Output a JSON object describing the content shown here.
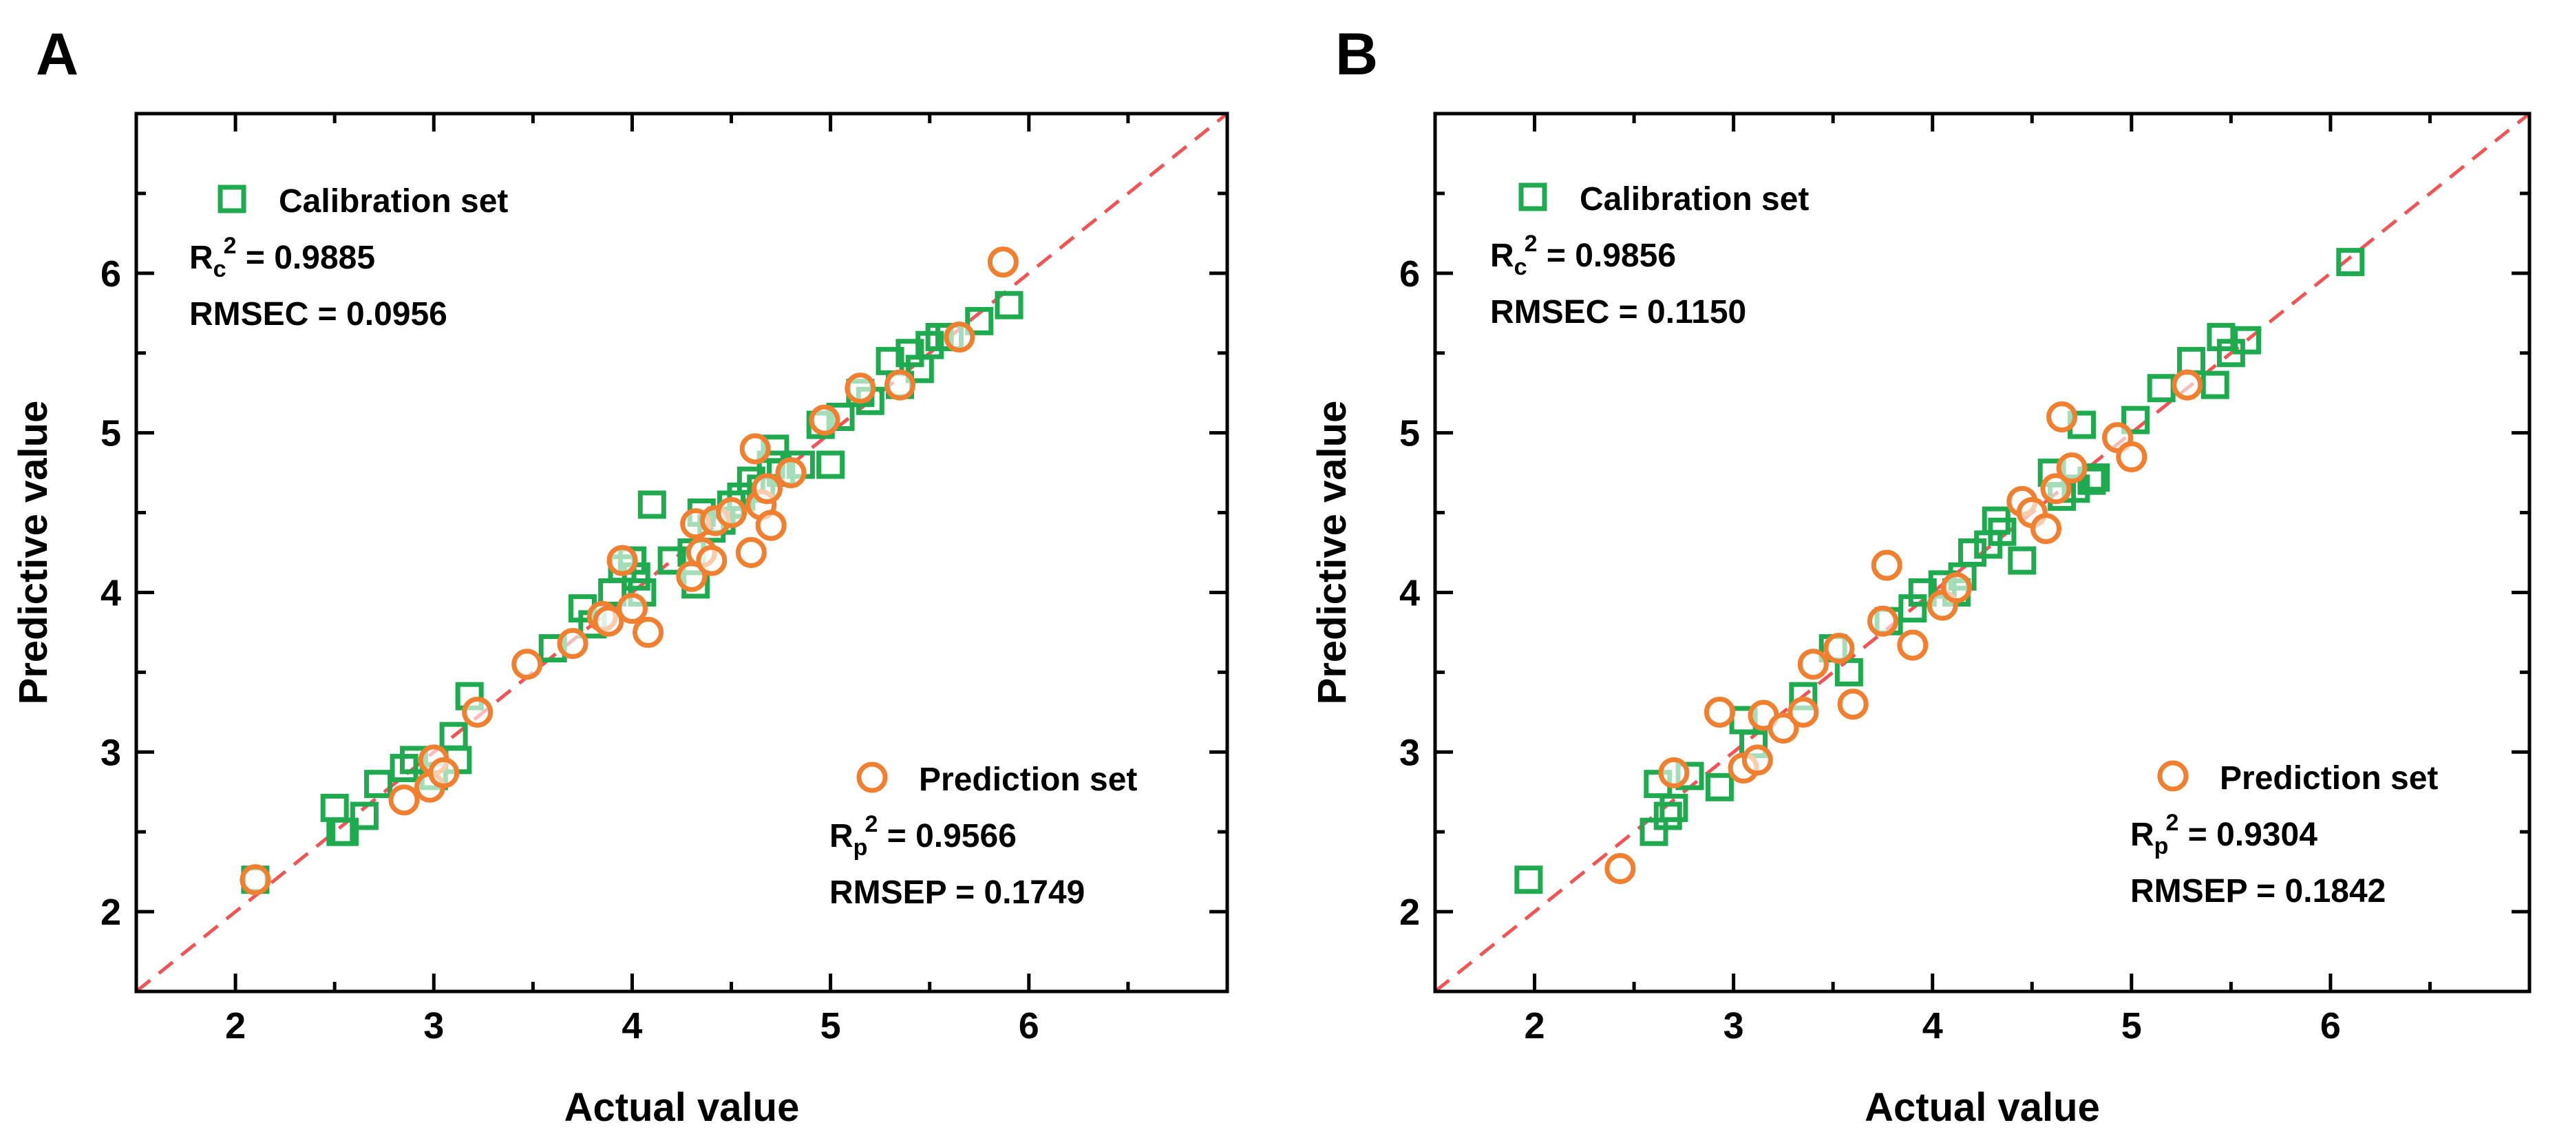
{
  "figure": {
    "letters": [
      "A",
      "B"
    ]
  },
  "colors": {
    "calibration": "#1faa4f",
    "prediction": "#f07f2f",
    "refline": "#f05454"
  },
  "chart_data": [
    {
      "panel": "A",
      "type": "scatter",
      "xlabel": "Actual value",
      "ylabel": "Predictive value",
      "xlim": [
        1.5,
        7.0
      ],
      "ylim": [
        1.5,
        7.0
      ],
      "xticks": [
        2,
        3,
        4,
        5,
        6
      ],
      "yticks": [
        2,
        3,
        4,
        5,
        6
      ],
      "reference_line": "y = x",
      "legend": {
        "calibration": {
          "label": "Calibration set",
          "r_text": "R",
          "r_sub": "c",
          "r_sup": "2",
          "r_value": " = 0.9885",
          "rmse": "RMSEC = 0.0956"
        },
        "prediction": {
          "label": "Prediction set",
          "r_text": "R",
          "r_sub": "p",
          "r_sup": "2",
          "r_value": " = 0.9566",
          "rmse": "RMSEP = 0.1749"
        }
      },
      "series": [
        {
          "name": "Calibration set",
          "marker": "square",
          "x": [
            2.1,
            2.5,
            2.53,
            2.55,
            2.65,
            2.72,
            2.85,
            2.9,
            3.0,
            3.1,
            3.12,
            3.18,
            3.6,
            3.75,
            3.8,
            3.9,
            3.95,
            4.0,
            4.02,
            4.05,
            4.1,
            4.2,
            4.3,
            4.32,
            4.35,
            4.4,
            4.45,
            4.5,
            4.55,
            4.6,
            4.65,
            4.7,
            4.72,
            4.75,
            4.85,
            4.95,
            5.0,
            5.05,
            5.15,
            5.2,
            5.3,
            5.35,
            5.4,
            5.45,
            5.5,
            5.55,
            5.6,
            5.75,
            5.9
          ],
          "y": [
            2.2,
            2.65,
            2.5,
            2.5,
            2.6,
            2.8,
            2.9,
            2.95,
            2.85,
            3.1,
            2.95,
            3.35,
            3.65,
            3.9,
            3.8,
            4.0,
            4.15,
            4.2,
            4.1,
            4.0,
            4.55,
            4.2,
            4.25,
            4.05,
            4.5,
            4.4,
            4.45,
            4.55,
            4.6,
            4.7,
            4.65,
            4.8,
            4.9,
            4.75,
            4.8,
            5.05,
            4.8,
            5.1,
            5.25,
            5.2,
            5.45,
            5.3,
            5.5,
            5.4,
            5.55,
            5.6,
            5.6,
            5.7,
            5.8
          ]
        },
        {
          "name": "Prediction set",
          "marker": "circle",
          "x": [
            2.1,
            2.85,
            2.98,
            3.0,
            3.05,
            3.22,
            3.47,
            3.7,
            3.85,
            3.88,
            3.95,
            4.0,
            4.08,
            4.3,
            4.32,
            4.35,
            4.4,
            4.42,
            4.5,
            4.6,
            4.62,
            4.65,
            4.68,
            4.7,
            4.8,
            4.97,
            5.15,
            5.35,
            5.65,
            5.87
          ],
          "y": [
            2.2,
            2.7,
            2.78,
            2.95,
            2.87,
            3.25,
            3.55,
            3.68,
            3.85,
            3.82,
            4.2,
            3.9,
            3.75,
            4.1,
            4.43,
            4.25,
            4.2,
            4.45,
            4.5,
            4.25,
            4.9,
            4.55,
            4.65,
            4.42,
            4.75,
            5.08,
            5.28,
            5.3,
            5.6,
            6.07
          ]
        }
      ]
    },
    {
      "panel": "B",
      "type": "scatter",
      "xlabel": "Actual value",
      "ylabel": "Predictive value",
      "xlim": [
        1.5,
        7.0
      ],
      "ylim": [
        1.5,
        7.0
      ],
      "xticks": [
        2,
        3,
        4,
        5,
        6
      ],
      "yticks": [
        2,
        3,
        4,
        5,
        6
      ],
      "reference_line": "y = x",
      "legend": {
        "calibration": {
          "label": "Calibration set",
          "r_text": "R",
          "r_sub": "c",
          "r_sup": "2",
          "r_value": " = 0.9856",
          "rmse": "RMSEC = 0.1150"
        },
        "prediction": {
          "label": "Prediction set",
          "r_text": "R",
          "r_sub": "p",
          "r_sup": "2",
          "r_value": " = 0.9304",
          "rmse": "RMSEP = 0.1842"
        }
      },
      "series": [
        {
          "name": "Calibration set",
          "marker": "square",
          "x": [
            1.97,
            2.6,
            2.62,
            2.67,
            2.7,
            2.78,
            2.93,
            3.05,
            3.1,
            3.35,
            3.5,
            3.58,
            3.78,
            3.9,
            3.95,
            4.05,
            4.12,
            4.15,
            4.2,
            4.28,
            4.32,
            4.35,
            4.45,
            4.6,
            4.65,
            4.72,
            4.75,
            4.8,
            4.82,
            5.02,
            5.15,
            5.3,
            5.42,
            5.45,
            5.5,
            5.58,
            6.1
          ],
          "y": [
            2.2,
            2.5,
            2.8,
            2.6,
            2.65,
            2.85,
            2.78,
            3.2,
            3.05,
            3.35,
            3.65,
            3.5,
            3.82,
            3.9,
            4.0,
            4.05,
            4.0,
            4.1,
            4.25,
            4.3,
            4.45,
            4.38,
            4.2,
            4.75,
            4.6,
            4.65,
            5.05,
            4.7,
            4.72,
            5.08,
            5.28,
            5.45,
            5.3,
            5.6,
            5.5,
            5.58,
            6.07
          ]
        },
        {
          "name": "Prediction set",
          "marker": "circle",
          "x": [
            2.43,
            2.7,
            2.93,
            3.05,
            3.12,
            3.15,
            3.25,
            3.35,
            3.4,
            3.53,
            3.6,
            3.75,
            3.77,
            3.9,
            4.05,
            4.12,
            4.45,
            4.5,
            4.57,
            4.62,
            4.65,
            4.7,
            4.93,
            5.0,
            5.28
          ],
          "y": [
            2.27,
            2.87,
            3.25,
            2.9,
            2.95,
            3.23,
            3.15,
            3.25,
            3.55,
            3.65,
            3.3,
            3.82,
            4.17,
            3.67,
            3.92,
            4.03,
            4.57,
            4.5,
            4.4,
            4.65,
            5.1,
            4.78,
            4.97,
            4.85,
            5.3
          ]
        }
      ]
    }
  ]
}
